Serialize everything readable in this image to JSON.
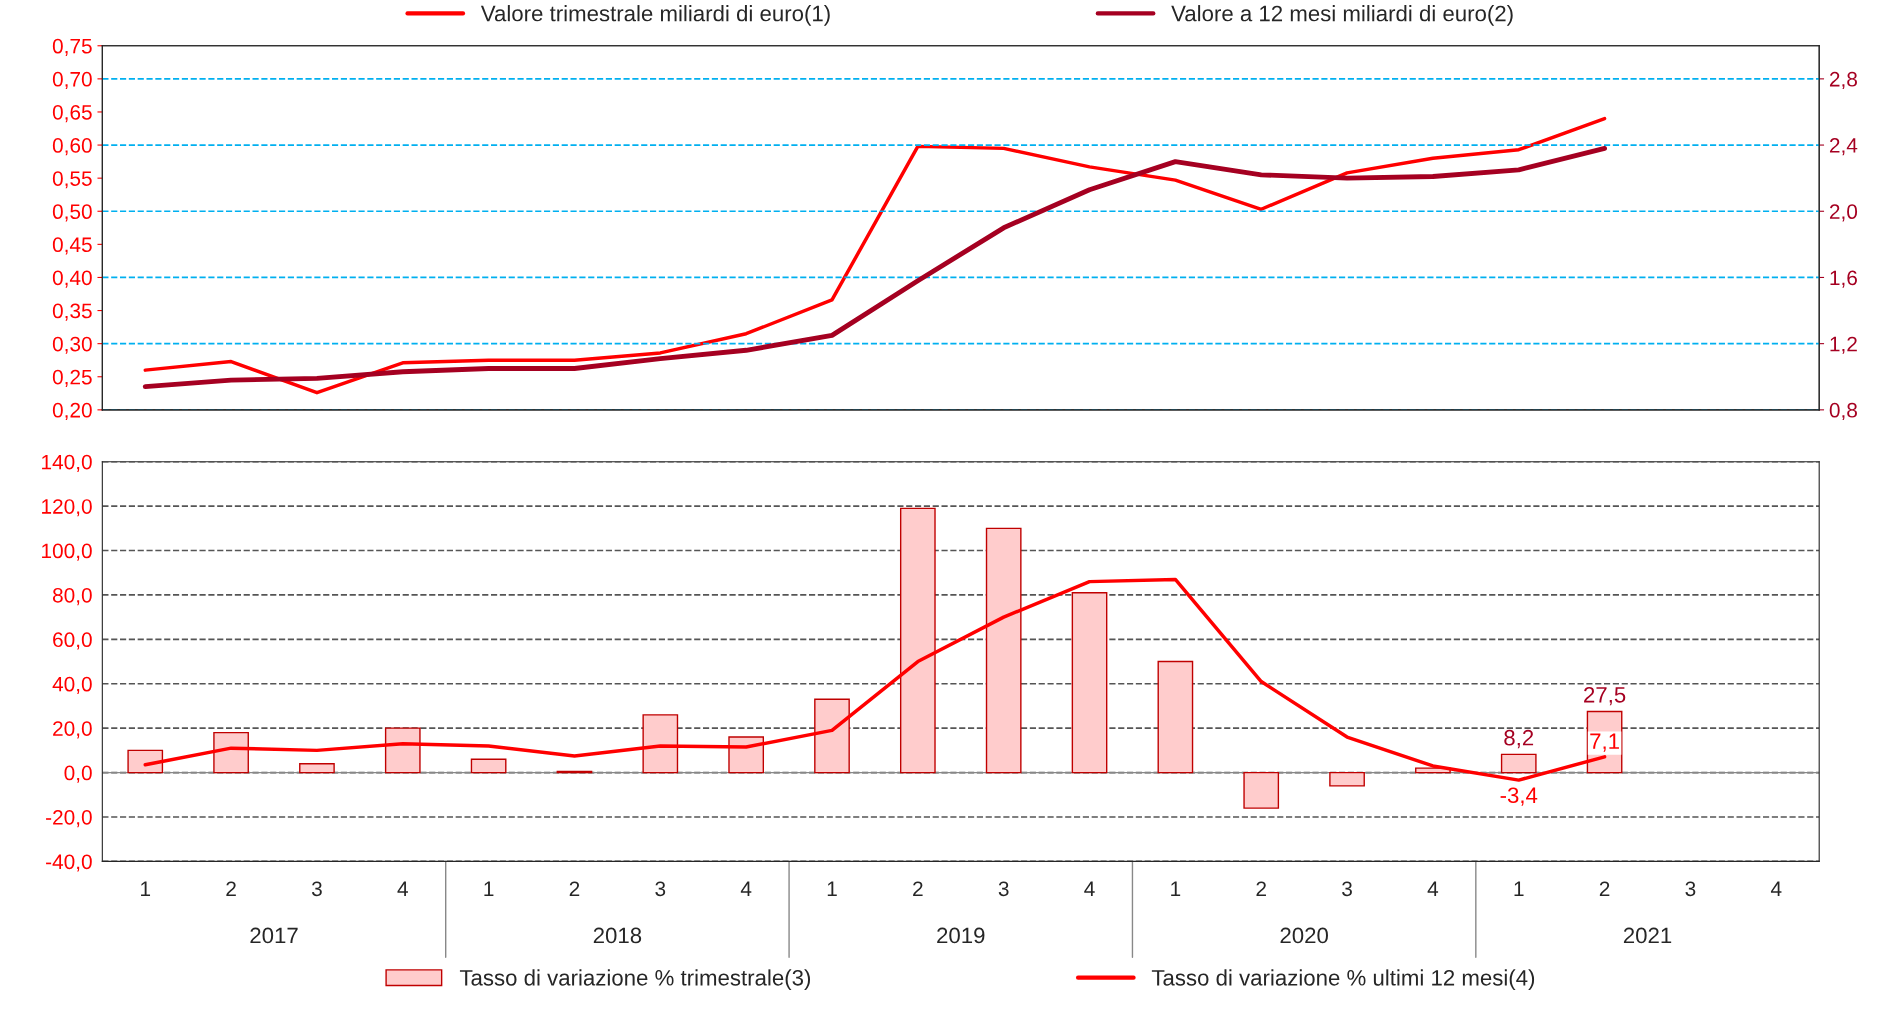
{
  "chart_data": [
    {
      "type": "line",
      "categories": [
        "1",
        "2",
        "3",
        "4",
        "1",
        "2",
        "3",
        "4",
        "1",
        "2",
        "3",
        "4",
        "1",
        "2",
        "3",
        "4",
        "1",
        "2",
        "3",
        "4"
      ],
      "tick_labels": "y",
      "grid": "y",
      "legend": "top",
      "line_style": "solid",
      "marker": "none",
      "ylim": [
        0.2,
        0.75
      ],
      "yticks": [
        {
          "value": 0.2,
          "label": "0,20"
        },
        {
          "value": 0.25,
          "label": "0,25"
        },
        {
          "value": 0.3,
          "label": "0,30"
        },
        {
          "value": 0.35,
          "label": "0,35"
        },
        {
          "value": 0.4,
          "label": "0,40"
        },
        {
          "value": 0.45,
          "label": "0,45"
        },
        {
          "value": 0.5,
          "label": "0,50"
        },
        {
          "value": 0.55,
          "label": "0,55"
        },
        {
          "value": 0.6,
          "label": "0,60"
        },
        {
          "value": 0.65,
          "label": "0,65"
        },
        {
          "value": 0.7,
          "label": "0,70"
        },
        {
          "value": 0.75,
          "label": "0,75"
        }
      ],
      "y2lim": [
        0.8,
        3.0
      ],
      "y2ticks": [
        {
          "value": 0.8,
          "label": "0,8"
        },
        {
          "value": 1.2,
          "label": "1,2"
        },
        {
          "value": 1.6,
          "label": "1,6"
        },
        {
          "value": 2.0,
          "label": "2,0"
        },
        {
          "value": 2.4,
          "label": "2,4"
        },
        {
          "value": 2.8,
          "label": "2,8"
        }
      ],
      "series": [
        {
          "name": "Valore trimestrale miliardi di euro(1)",
          "color": "#ff0000",
          "values": [
            0.26,
            0.273,
            0.226,
            0.271,
            0.275,
            0.275,
            0.286,
            0.315,
            0.366,
            0.598,
            0.595,
            0.567,
            0.547,
            0.503,
            0.558,
            0.58,
            0.593,
            0.64,
            null,
            null
          ]
        },
        {
          "name": "Valore a 12 mesi miliardi di euro(2)",
          "color": "#a50021",
          "axis": "y2",
          "values": [
            0.94,
            0.98,
            0.99,
            1.03,
            1.05,
            1.05,
            1.11,
            1.16,
            1.25,
            1.58,
            1.9,
            2.13,
            2.3,
            2.22,
            2.2,
            2.21,
            2.25,
            2.38,
            null,
            null
          ]
        }
      ]
    },
    {
      "type": "bar",
      "categories": [
        "1",
        "2",
        "3",
        "4",
        "1",
        "2",
        "3",
        "4",
        "1",
        "2",
        "3",
        "4",
        "1",
        "2",
        "3",
        "4",
        "1",
        "2",
        "3",
        "4"
      ],
      "grid": "y",
      "legend": "bottom",
      "ylim": [
        -40,
        140
      ],
      "yticks": [
        {
          "value": -40,
          "label": "-40,0"
        },
        {
          "value": -20,
          "label": "-20,0"
        },
        {
          "value": 0,
          "label": "0,0"
        },
        {
          "value": 20,
          "label": "20,0"
        },
        {
          "value": 40,
          "label": "40,0"
        },
        {
          "value": 60,
          "label": "60,0"
        },
        {
          "value": 80,
          "label": "80,0"
        },
        {
          "value": 100,
          "label": "100,0"
        },
        {
          "value": 120,
          "label": "120,0"
        },
        {
          "value": 140,
          "label": "140,0"
        }
      ],
      "annotations": [
        "2017",
        "2018",
        "2019",
        "2020",
        "2021"
      ],
      "series": [
        {
          "name": "Tasso di variazione % trimestrale(3)",
          "type": "bar",
          "color": "#ffcccc",
          "values": [
            10,
            18,
            4,
            20,
            6,
            0.5,
            26,
            16,
            33,
            119,
            110,
            81,
            50,
            -16,
            -6,
            2,
            8.2,
            27.5,
            null,
            null
          ],
          "value_labels": [
            null,
            null,
            null,
            null,
            null,
            null,
            null,
            null,
            null,
            null,
            null,
            null,
            null,
            null,
            null,
            null,
            "8,2",
            "27,5",
            null,
            null
          ]
        },
        {
          "name": "Tasso di variazione % ultimi 12 mesi(4)",
          "type": "line",
          "color": "#ff0000",
          "values": [
            3.5,
            11,
            10,
            13,
            12,
            7.5,
            12,
            11.5,
            19,
            50,
            70,
            86,
            87,
            41,
            16,
            3,
            -3.4,
            7.1,
            null,
            null
          ],
          "value_labels": [
            null,
            null,
            null,
            null,
            null,
            null,
            null,
            null,
            null,
            null,
            null,
            null,
            null,
            null,
            null,
            null,
            "-3,4",
            "7,1",
            null,
            null
          ]
        }
      ]
    }
  ]
}
